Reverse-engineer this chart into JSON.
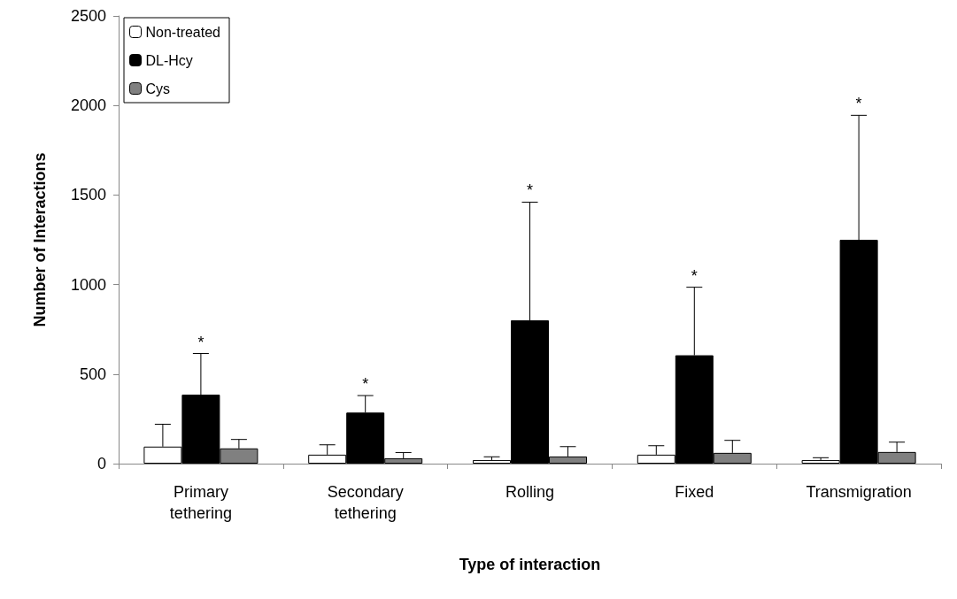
{
  "chart_data": {
    "type": "bar",
    "xlabel": "Type of interaction",
    "ylabel": "Number of Interactions",
    "categories": [
      "Primary\ntethering",
      "Secondary\ntethering",
      "Rolling",
      "Fixed",
      "Transmigration"
    ],
    "series": [
      {
        "name": "Non-treated",
        "color": "#ffffff",
        "values": [
          95,
          50,
          20,
          50,
          20
        ],
        "errors": [
          [
            95,
            220
          ],
          [
            50,
            105
          ],
          [
            20,
            38
          ],
          [
            50,
            100
          ],
          [
            20,
            33
          ]
        ]
      },
      {
        "name": "DL-Hcy",
        "color": "#000000",
        "values": [
          385,
          285,
          800,
          605,
          1250
        ],
        "errors": [
          [
            385,
            615
          ],
          [
            285,
            380
          ],
          [
            800,
            1460
          ],
          [
            605,
            985
          ],
          [
            1250,
            1945
          ]
        ]
      },
      {
        "name": "Cys",
        "color": "#808080",
        "values": [
          85,
          30,
          40,
          60,
          65
        ],
        "errors": [
          [
            85,
            135
          ],
          [
            30,
            62
          ],
          [
            40,
            95
          ],
          [
            60,
            130
          ],
          [
            65,
            120
          ]
        ]
      }
    ],
    "annotations": [
      {
        "text": "*",
        "x": "Primary\ntethering",
        "y": 615
      },
      {
        "text": "*",
        "x": "Secondary\ntethering",
        "y": 380
      },
      {
        "text": "*",
        "x": "Rolling",
        "y": 1460
      },
      {
        "text": "*",
        "x": "Fixed",
        "y": 985
      },
      {
        "text": "*",
        "x": "Transmigration",
        "y": 1945
      }
    ],
    "ylim": [
      0,
      2500
    ],
    "yticks": [
      0,
      500,
      1000,
      1500,
      2000,
      2500
    ],
    "grid": false,
    "legend": "top left"
  }
}
